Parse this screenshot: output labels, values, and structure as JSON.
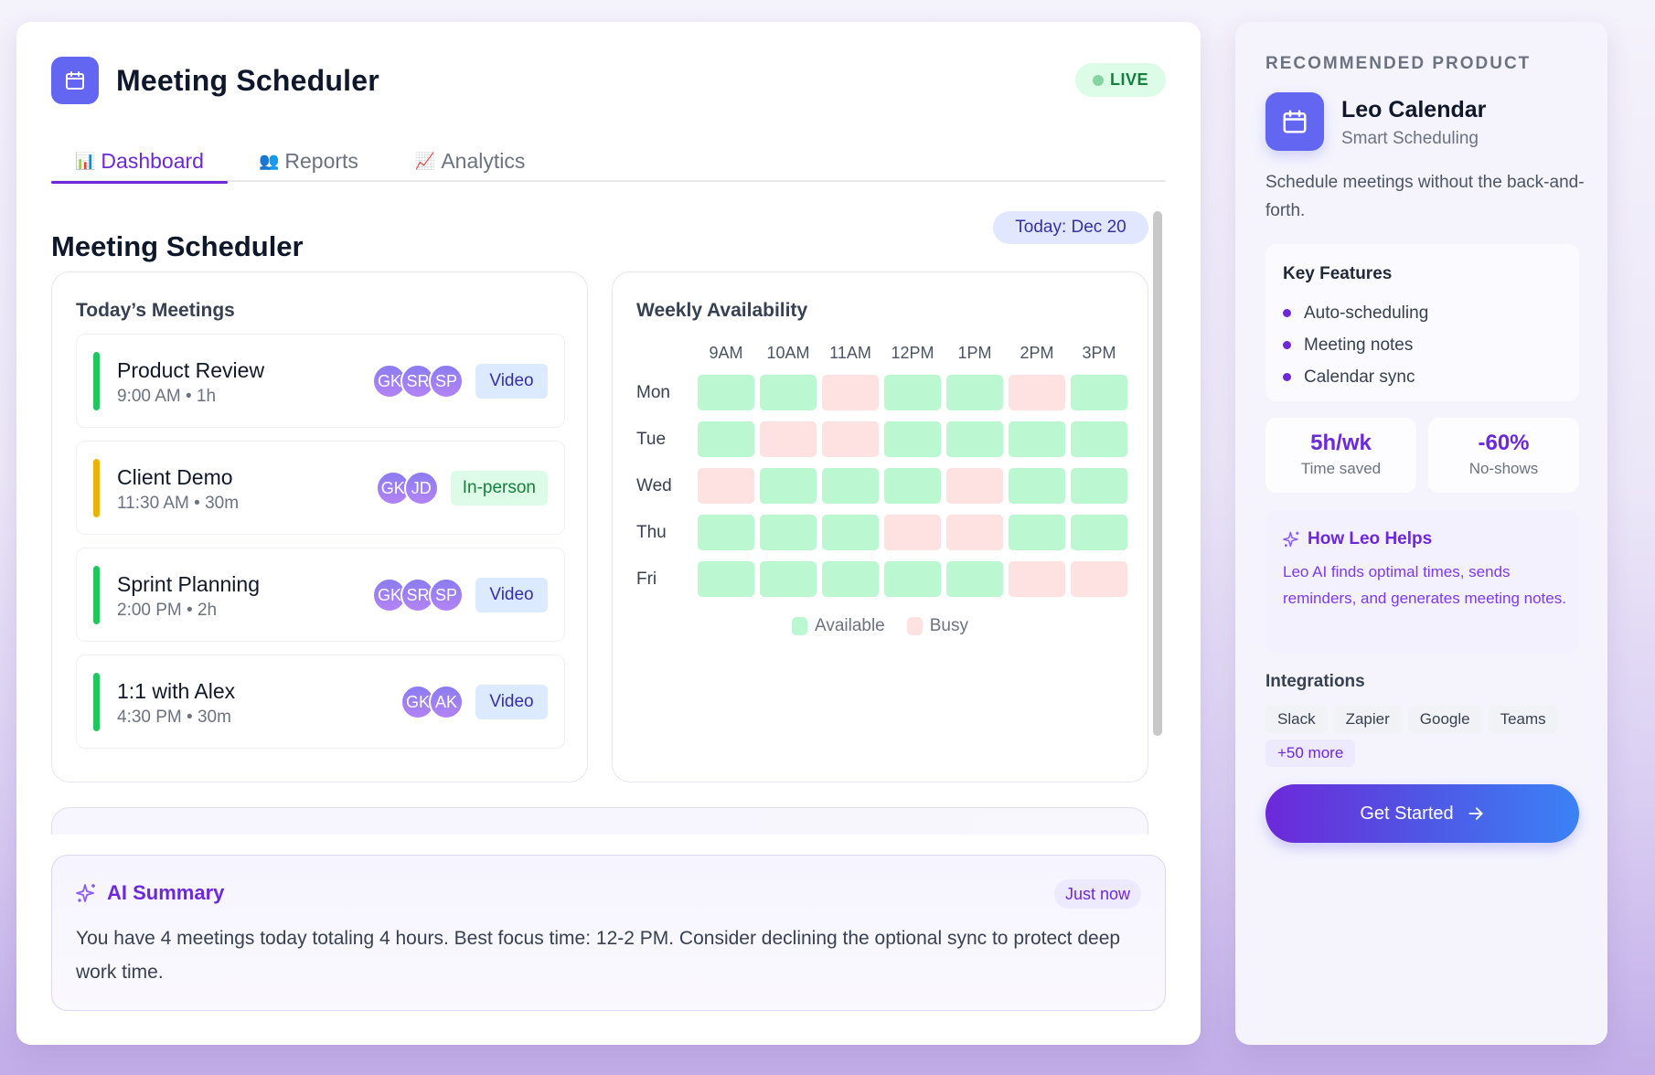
{
  "header": {
    "app_title": "Meeting Scheduler",
    "logo_icon": "calendar-icon",
    "status_badge": "LIVE",
    "status_color": "#15803d"
  },
  "tabs": [
    {
      "icon": "📊",
      "label": "Dashboard",
      "active": true
    },
    {
      "icon": "👥",
      "label": "Reports",
      "active": false
    },
    {
      "icon": "📈",
      "label": "Analytics",
      "active": false
    }
  ],
  "page": {
    "section_title": "Meeting Scheduler",
    "today_badge": "Today: Dec 20"
  },
  "meetings": {
    "title": "Today’s Meetings",
    "items": [
      {
        "title": "Product Review",
        "time": "9:00 AM • 1h",
        "color": "#22c55e",
        "attendees": [
          "GK",
          "SR",
          "SP"
        ],
        "type": "Video"
      },
      {
        "title": "Client Demo",
        "time": "11:30 AM • 30m",
        "color": "#eab308",
        "attendees": [
          "GK",
          "JD"
        ],
        "type": "In-person"
      },
      {
        "title": "Sprint Planning",
        "time": "2:00 PM • 2h",
        "color": "#22c55e",
        "attendees": [
          "GK",
          "SR",
          "SP"
        ],
        "type": "Video"
      },
      {
        "title": "1:1 with Alex",
        "time": "4:30 PM • 30m",
        "color": "#22c55e",
        "attendees": [
          "GK",
          "AK"
        ],
        "type": "Video"
      }
    ]
  },
  "availability": {
    "title": "Weekly Availability",
    "hours": [
      "9AM",
      "10AM",
      "11AM",
      "12PM",
      "1PM",
      "2PM",
      "3PM"
    ],
    "days": [
      {
        "label": "Mon",
        "slots": [
          "A",
          "A",
          "B",
          "A",
          "A",
          "B",
          "A"
        ]
      },
      {
        "label": "Tue",
        "slots": [
          "A",
          "B",
          "B",
          "A",
          "A",
          "A",
          "A"
        ]
      },
      {
        "label": "Wed",
        "slots": [
          "B",
          "A",
          "A",
          "A",
          "B",
          "A",
          "A"
        ]
      },
      {
        "label": "Thu",
        "slots": [
          "A",
          "A",
          "A",
          "B",
          "B",
          "A",
          "A"
        ]
      },
      {
        "label": "Fri",
        "slots": [
          "A",
          "A",
          "A",
          "A",
          "A",
          "B",
          "B"
        ]
      }
    ],
    "legend": [
      {
        "label": "Available",
        "color": "#bbf7d0"
      },
      {
        "label": "Busy",
        "color": "#fee2e2"
      }
    ]
  },
  "ai_summary": {
    "title": "AI Summary",
    "timestamp": "Just now",
    "text": "You have 4 meetings today totaling 4 hours. Best focus time: 12-2 PM. Consider declining the optional sync to protect deep work time."
  },
  "sidebar": {
    "eyebrow": "RECOMMENDED PRODUCT",
    "product_name": "Leo Calendar",
    "product_tagline": "Smart Scheduling",
    "description": "Schedule meetings without the back-and-forth.",
    "features_title": "Key Features",
    "features": [
      "Auto-scheduling",
      "Meeting notes",
      "Calendar sync"
    ],
    "stats": [
      {
        "value": "5h/wk",
        "label": "Time saved"
      },
      {
        "value": "-60%",
        "label": "No-shows"
      }
    ],
    "how_title": "How Leo Helps",
    "how_text": "Leo AI finds optimal times, sends reminders, and generates meeting notes.",
    "integrations_title": "Integrations",
    "integrations": [
      "Slack",
      "Zapier",
      "Google",
      "Teams"
    ],
    "integrations_more": "+50 more",
    "cta_label": "Get Started",
    "accent_color": "#6d28d9"
  }
}
